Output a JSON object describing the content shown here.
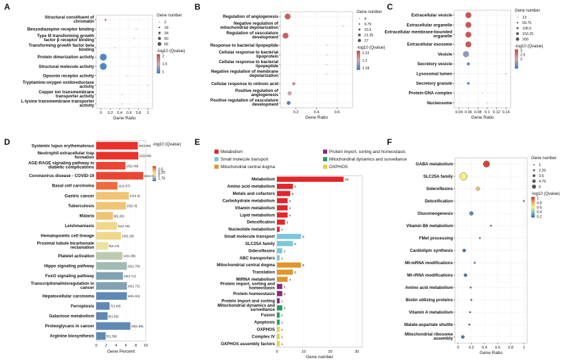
{
  "figure": {
    "panel_letters": [
      "A",
      "B",
      "C",
      "D",
      "E",
      "F"
    ]
  },
  "chart_data": [
    {
      "panel": "A",
      "type": "scatter",
      "xlabel": "Gene Ratio",
      "xlim": [
        -0.1,
        1.1
      ],
      "xticks": [
        "0",
        "0.2",
        "0.4",
        "0.6",
        "0.8",
        "1"
      ],
      "categories": [
        "Structural constituent of chromatin",
        "Benzodiazepine receptor binding",
        "Type III transforming growth factor β receptor binding",
        "Transforming growth factor beta binding",
        "Protein dimerization activity",
        "Structural molecule activity",
        "Opsonin receptor activity",
        "Tryptamine:oxygen oxidoreductase activity",
        "Copper ion transmembrane transporter activity",
        "L-lysine transmembrane transporter activity"
      ],
      "x": [
        0.1,
        0.75,
        0.7,
        0.3,
        0.05,
        0.05,
        0.55,
        1.0,
        0.45,
        0.45
      ],
      "size": [
        3,
        2,
        2,
        2,
        60,
        60,
        2,
        2,
        2,
        2
      ],
      "color": [
        2,
        1.6,
        1.6,
        1.5,
        1,
        1,
        1.5,
        1.5,
        1.5,
        1.5
      ],
      "size_legend": {
        "title": "Gene number",
        "values": [
          "2",
          "18",
          "34",
          "50",
          "66"
        ]
      },
      "color_legend": {
        "title": "-log10 (Qvalue)",
        "ticks": [
          "2",
          "1.5",
          "1"
        ],
        "range": [
          0.9,
          2.1
        ]
      }
    },
    {
      "panel": "B",
      "type": "scatter",
      "xlabel": "Gene Ratio",
      "xlim": [
        0.05,
        0.75
      ],
      "xticks": [
        "0.2",
        "0.4",
        "0.6"
      ],
      "categories": [
        "Regulation of angiogenesis",
        "Negative regulation of mitochondrial depolarization",
        "Regulation of vasculature development",
        "Response to bacterial lipopeptide",
        "Cellular response to bacterial lipoprotein",
        "Cellular response to bacterial lipopeptide",
        "Negative regulation of membrane depolarization",
        "Cellular response to retinoic acid",
        "Positive regulation of angiogenesis",
        "Positive regulation of vasculature development"
      ],
      "x": [
        0.12,
        0.66,
        0.1,
        0.5,
        0.5,
        0.5,
        0.5,
        0.18,
        0.14,
        0.13
      ],
      "size": [
        27,
        4,
        27,
        4,
        4,
        4,
        4,
        8,
        14,
        12
      ],
      "color": [
        1.22,
        1.2,
        1.22,
        1.2,
        1.2,
        1.2,
        1.2,
        1.21,
        1.2,
        1.18
      ],
      "size_legend": {
        "title": "Gene number",
        "values": [
          "4",
          "9.75",
          "15.5",
          "21.25",
          "27"
        ]
      },
      "color_legend": {
        "title": "-log10 (Qvalue)",
        "ticks": [
          "1.22",
          "1.2",
          "1.18"
        ],
        "range": [
          1.175,
          1.225
        ]
      }
    },
    {
      "panel": "C",
      "type": "scatter",
      "xlabel": "Gene Ratio",
      "xlim": [
        0.03,
        0.15
      ],
      "xticks": [
        "0.04",
        "0.06",
        "0.08",
        "0.1",
        "0.12",
        "0.14"
      ],
      "categories": [
        "Extracellular vesicle",
        "Extracellular organelle",
        "Extracellular membrane-bounded organelle",
        "Extracellular exosome",
        "Vesicle",
        "Secretory vesicle",
        "Lysosomal lumen",
        "Secretory granule",
        "Protein-DNA complex",
        "Nucleosome"
      ],
      "x": [
        0.06,
        0.06,
        0.06,
        0.06,
        0.055,
        0.06,
        0.14,
        0.06,
        0.09,
        0.1
      ],
      "size": [
        180,
        180,
        180,
        180,
        200,
        40,
        13,
        30,
        13,
        13
      ],
      "color": [
        3,
        3,
        3,
        3,
        1.6,
        1.1,
        2.5,
        1.1,
        2,
        2
      ],
      "size_legend": {
        "title": "Gene number",
        "values": [
          "13",
          "59.75",
          "106.5",
          "153.25",
          "200"
        ]
      },
      "color_legend": {
        "title": "-log10 (Qvalue)",
        "ticks": [
          "3",
          "2.5",
          "2"
        ],
        "range": [
          0.9,
          3.1
        ]
      }
    },
    {
      "panel": "D",
      "type": "bar",
      "xlabel": "Gene Percent",
      "xlim": [
        0,
        10
      ],
      "xticks": [
        "0",
        "2",
        "4",
        "6",
        "8",
        "10"
      ],
      "categories": [
        "Systemic lupus erythematosus",
        "Neutrophil extracellular trap formation",
        "AGE-RAGE signaling pathway in diabetic complications",
        "Coronavirus disease - COVID-19",
        "Basal cell carcinoma",
        "Gastric cancer",
        "Tuberculosis",
        "Malaria",
        "Leishmaniasis",
        "Hematopoietic cell lineage",
        "Proximal tubule bicarbonate reclamation",
        "Platelet activation",
        "Hippo signaling pathway",
        "FoxO signaling pathway",
        "Transcriptionalmisregulation in cancer",
        "Hepatocellular carcinoma",
        "Ferroptosis",
        "Galactose metabolism",
        "Proteoglycans in cancer",
        "Arginine biosynthesis"
      ],
      "values": [
        8.4,
        8.5,
        5.9,
        9.5,
        4.3,
        6.6,
        6.0,
        3.4,
        4.2,
        5.0,
        2.4,
        5.3,
        6.2,
        5.4,
        6.2,
        6.2,
        2.7,
        2.3,
        6.9,
        1.9
      ],
      "bar_labels": [
        "20(3.88)",
        "22(2.89)",
        "15(2.69)",
        "24(2.68)",
        "11(2.57)",
        "17(2.3)",
        "15(2.3)",
        "9(2.26)",
        "11(2.15)",
        "13(2.18)",
        "6(2.14)",
        "14(1.89)",
        "16(1.78)",
        "14(1.71)",
        "16(1.71)",
        "16(1.64)",
        "7(1.64)",
        "6(1.62)",
        "18(1.59)",
        "5(1.59)"
      ],
      "color": [
        3.9,
        2.9,
        2.7,
        2.7,
        2.6,
        2.3,
        2.3,
        2.3,
        2.2,
        2.2,
        2.1,
        1.9,
        1.8,
        1.7,
        1.7,
        1.6,
        1.6,
        1.6,
        1.6,
        1.6
      ],
      "color_legend": {
        "title": "-log10 (Qvalue)",
        "ticks": [
          "2.5",
          "2.25",
          "2",
          "1.76"
        ],
        "range": [
          1.5,
          2.75
        ]
      }
    },
    {
      "panel": "E",
      "type": "bar",
      "xlabel": "Gene number",
      "xlim": [
        0,
        32
      ],
      "xticks": [
        "0",
        "10",
        "20",
        "30"
      ],
      "legend": [
        {
          "label": "Metabolism",
          "color": "#e2262b"
        },
        {
          "label": "Small molecule transport",
          "color": "#7bc6e0"
        },
        {
          "label": "Mitochondrial central dogma",
          "color": "#e0962a"
        },
        {
          "label": "Protein import, sorting and homeostasis",
          "color": "#8c2a7c"
        },
        {
          "label": "Mitochondrial dynamics and surveillance",
          "color": "#20a060"
        },
        {
          "label": "OXPHOS",
          "color": "#e0d437"
        }
      ],
      "categories": [
        "Metabolism",
        "Amino acid metabolism",
        "Metals and cofactors",
        "Carbohydrate metabolism",
        "Vitamin metabolism",
        "Lipid metabolism",
        "Detoxification",
        "Nucleotide metabolism",
        "Small molecule transport",
        "SLC25A family",
        "Sideroflexins",
        "ABC transporters",
        "Mitochondrial central dogma",
        "Translation",
        "MtRNA metabolism",
        "Protein import, sorting and homeostasis",
        "Protein homeostasis",
        "Protein import and sorting",
        "Mitochondrial dynamics and surveillance",
        "Fusion",
        "Apoptosis",
        "OXPHOS",
        "Complex IV",
        "OXPHOS assembly factors"
      ],
      "values": [
        25,
        6,
        5,
        4,
        4,
        4,
        3,
        1,
        9,
        6,
        2,
        1,
        9,
        6,
        4,
        2,
        2,
        1,
        2,
        1,
        1,
        1,
        1,
        1
      ],
      "label_colors": [
        "#111111",
        "#e2262b",
        "#e2262b",
        "#e2262b",
        "#e2262b",
        "#e2262b",
        "#e2262b",
        "#e2262b",
        "#111111",
        "#7bc6e0",
        "#7bc6e0",
        "#7bc6e0",
        "#111111",
        "#e0962a",
        "#e0962a",
        "#111111",
        "#8c2a7c",
        "#8c2a7c",
        "#111111",
        "#20a060",
        "#20a060",
        "#111111",
        "#e0d437",
        "#e0d437"
      ],
      "bar_colors": [
        "#e2262b",
        "#e2262b",
        "#e2262b",
        "#e2262b",
        "#e2262b",
        "#e2262b",
        "#e2262b",
        "#e2262b",
        "#7bc6e0",
        "#7bc6e0",
        "#7bc6e0",
        "#7bc6e0",
        "#e0962a",
        "#e0962a",
        "#e0962a",
        "#8c2a7c",
        "#8c2a7c",
        "#8c2a7c",
        "#20a060",
        "#20a060",
        "#20a060",
        "#e0d437",
        "#e0d437",
        "#e0d437"
      ]
    },
    {
      "panel": "F",
      "type": "scatter",
      "xlabel": "Gene Ratio",
      "xlim": [
        -0.05,
        1.05
      ],
      "xticks": [
        "0",
        "0.2",
        "0.4",
        "0.6",
        "0.8",
        "1"
      ],
      "categories": [
        "GABA metabolism",
        "SLC25A family",
        "Sideroflexins",
        "Detoxification",
        "Gluconeogenesis",
        "Vitamin B6 metabolism",
        "FMet processing",
        "Cardiolipin synthesis",
        "Mt-mRNA modifications",
        "Mt-rRNA modifications",
        "Amino acid metabolism",
        "Biotin utilizing proteins",
        "Vitamin A metabolism",
        "Malate-aspartate shuttle",
        "Mitochondrial ribosome assembly"
      ],
      "x": [
        0.43,
        0.08,
        0.3,
        1.0,
        0.2,
        0.5,
        0.33,
        0.09,
        0.25,
        0.11,
        0.19,
        0.2,
        0.18,
        0.17,
        0.07
      ],
      "size": [
        6,
        9,
        2,
        1,
        2,
        1,
        1,
        1.5,
        1,
        1.5,
        1,
        1,
        1,
        1,
        1.5
      ],
      "color": [
        1,
        0.6,
        0.7,
        0.3,
        0.25,
        0.3,
        0.3,
        0.2,
        0.2,
        0.2,
        0.25,
        0.25,
        0.25,
        0.2,
        0.2
      ],
      "size_legend": {
        "title": "Gene number",
        "values": [
          "1",
          "2.25",
          "3.5",
          "4.75",
          "6"
        ]
      },
      "color_legend": {
        "title": "-log10 (Qvalue)",
        "ticks": [
          "1",
          "0.8",
          "0.6",
          "0.4",
          "0.2"
        ],
        "range": [
          0.15,
          1.05
        ]
      }
    }
  ]
}
